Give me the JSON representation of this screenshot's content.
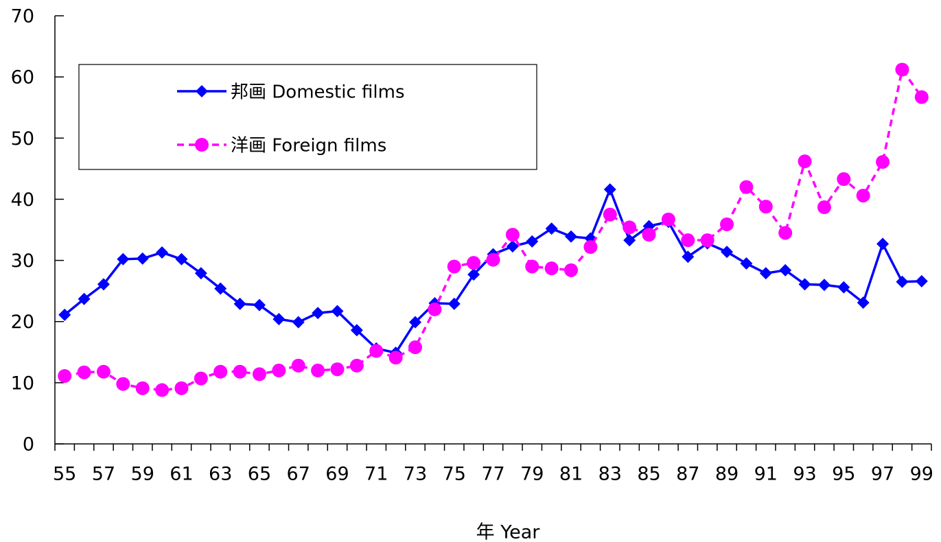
{
  "chart_data": {
    "type": "line",
    "xlabel": "年  Year",
    "categories": [
      "55",
      null,
      "57",
      null,
      "59",
      null,
      "61",
      null,
      "63",
      null,
      "65",
      null,
      "67",
      null,
      "69",
      null,
      "71",
      null,
      "73",
      null,
      "75",
      null,
      "77",
      null,
      "79",
      null,
      "81",
      null,
      "83",
      null,
      "85",
      null,
      "87",
      null,
      "89",
      null,
      "91",
      null,
      "93",
      null,
      "95",
      null,
      "97",
      null,
      "99"
    ],
    "series": [
      {
        "name": "邦画 Domestic films",
        "color": "#0000ff",
        "marker": "diamond",
        "dashed": false,
        "values": [
          21.1,
          23.7,
          26.1,
          30.2,
          30.3,
          31.3,
          30.2,
          27.9,
          25.4,
          22.9,
          22.7,
          20.4,
          19.9,
          21.4,
          21.7,
          18.6,
          15.6,
          14.9,
          19.9,
          23.0,
          22.9,
          27.7,
          31.0,
          32.3,
          33.1,
          35.2,
          33.9,
          33.6,
          41.6,
          33.3,
          35.6,
          36.3,
          30.6,
          32.8,
          31.4,
          29.5,
          27.9,
          28.4,
          26.1,
          26.0,
          25.6,
          23.1,
          32.7,
          26.5,
          26.6
        ]
      },
      {
        "name": "洋画 Foreign films",
        "color": "#ff00ff",
        "marker": "circle",
        "dashed": true,
        "values": [
          11.1,
          11.7,
          11.8,
          9.8,
          9.1,
          8.8,
          9.1,
          10.7,
          11.8,
          11.8,
          11.4,
          12.0,
          12.8,
          12.0,
          12.2,
          12.8,
          15.2,
          14.1,
          15.8,
          22.0,
          29.0,
          29.6,
          30.1,
          34.2,
          29.0,
          28.7,
          28.4,
          32.2,
          37.5,
          35.4,
          34.2,
          36.7,
          33.3,
          33.3,
          35.9,
          42.0,
          38.8,
          34.5,
          46.2,
          38.7,
          43.3,
          40.6,
          46.1,
          61.2,
          56.7
        ]
      }
    ],
    "ylim": [
      0,
      70
    ],
    "yticks": [
      0,
      10,
      20,
      30,
      40,
      50,
      60,
      70
    ],
    "grid": false,
    "legend": "upper left"
  }
}
